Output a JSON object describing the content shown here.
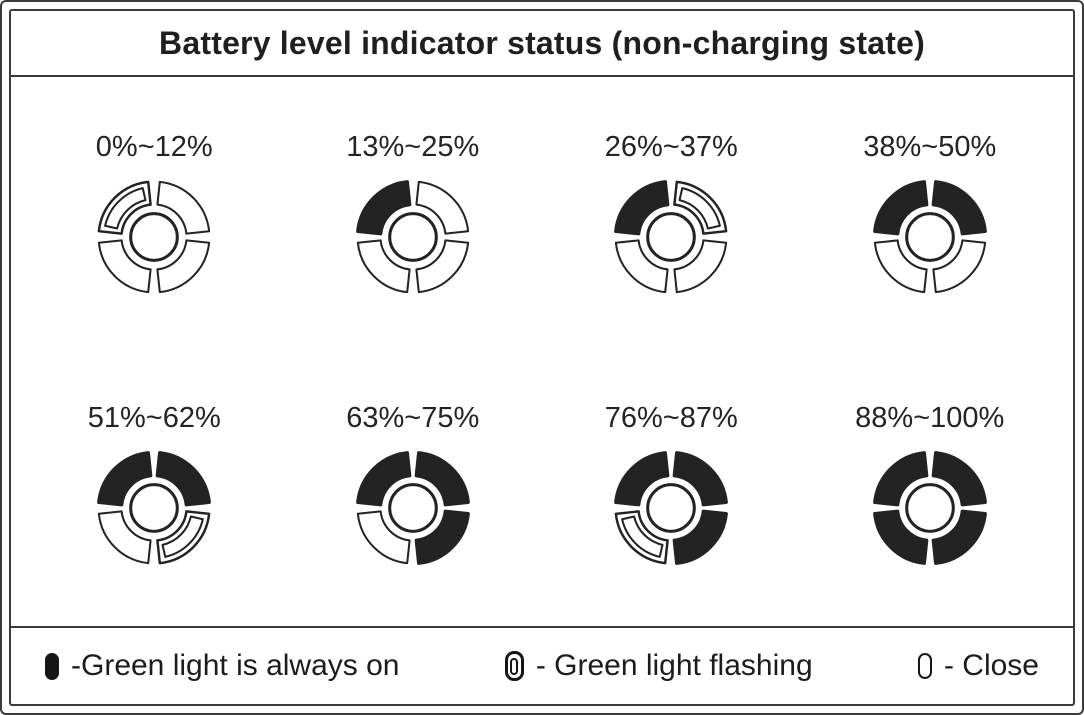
{
  "title": "Battery level indicator status (non-charging state)",
  "indicators": [
    {
      "label": "0%~12%",
      "segments": [
        "flash",
        "off",
        "off",
        "off"
      ]
    },
    {
      "label": "13%~25%",
      "segments": [
        "on",
        "off",
        "off",
        "off"
      ]
    },
    {
      "label": "26%~37%",
      "segments": [
        "on",
        "flash",
        "off",
        "off"
      ]
    },
    {
      "label": "38%~50%",
      "segments": [
        "on",
        "on",
        "off",
        "off"
      ]
    },
    {
      "label": "51%~62%",
      "segments": [
        "on",
        "on",
        "flash",
        "off"
      ]
    },
    {
      "label": "63%~75%",
      "segments": [
        "on",
        "on",
        "on",
        "off"
      ]
    },
    {
      "label": "76%~87%",
      "segments": [
        "on",
        "on",
        "on",
        "flash"
      ]
    },
    {
      "label": "88%~100%",
      "segments": [
        "on",
        "on",
        "on",
        "on"
      ]
    }
  ],
  "segment_positions": [
    "top-left",
    "top-right",
    "bottom-right",
    "bottom-left"
  ],
  "legend": [
    {
      "icon": "led-solid-icon",
      "label": "-Green light is always on"
    },
    {
      "icon": "led-flashing-icon",
      "label": "- Green light flashing"
    },
    {
      "icon": "led-off-icon",
      "label": "- Close"
    }
  ],
  "colors": {
    "ink": "#232323",
    "frame": "#3a3a3a",
    "background": "#ffffff"
  }
}
